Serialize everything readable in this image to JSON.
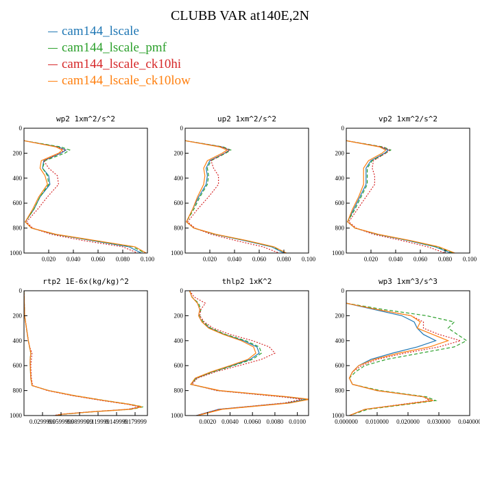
{
  "title": "CLUBB VAR at140E,2N",
  "legend": [
    {
      "label": "cam144_lscale",
      "color": "#1f77b4"
    },
    {
      "label": "cam144_lscale_pmf",
      "color": "#2ca02c"
    },
    {
      "label": "cam144_lscale_ck10hi",
      "color": "#d62728"
    },
    {
      "label": "cam144_lscale_ck10low",
      "color": "#ff7f0e"
    }
  ],
  "chart_data": [
    {
      "type": "line",
      "title": "wp2 1xm^2/s^2",
      "xlim": [
        0,
        0.1
      ],
      "ylim": [
        1000,
        0
      ],
      "xticks": [
        0.02,
        0.04,
        0.06,
        0.08,
        0.1
      ],
      "xtick_labels": [
        "0.020",
        "0.040",
        "0.060",
        "0.080",
        "0.100"
      ],
      "yticks": [
        0,
        200,
        400,
        600,
        800,
        1000
      ],
      "y": [
        100,
        150,
        175,
        200,
        260,
        320,
        380,
        450,
        550,
        650,
        750,
        800,
        850,
        900,
        950,
        1000
      ],
      "series": [
        {
          "values": [
            0.0,
            0.028,
            0.034,
            0.03,
            0.016,
            0.015,
            0.02,
            0.021,
            0.013,
            0.008,
            0.001,
            0.006,
            0.025,
            0.055,
            0.085,
            0.095
          ]
        },
        {
          "values": [
            0.0,
            0.03,
            0.037,
            0.033,
            0.017,
            0.015,
            0.019,
            0.02,
            0.013,
            0.008,
            0.001,
            0.006,
            0.025,
            0.056,
            0.088,
            0.098
          ]
        },
        {
          "values": [
            0.0,
            0.027,
            0.033,
            0.029,
            0.016,
            0.02,
            0.027,
            0.028,
            0.019,
            0.011,
            0.002,
            0.007,
            0.022,
            0.048,
            0.08,
            0.092
          ]
        },
        {
          "values": [
            0.0,
            0.026,
            0.031,
            0.028,
            0.014,
            0.013,
            0.017,
            0.019,
            0.012,
            0.007,
            0.001,
            0.006,
            0.026,
            0.058,
            0.09,
            0.099
          ]
        }
      ]
    },
    {
      "type": "line",
      "title": "up2 1xm^2/s^2",
      "xlim": [
        0,
        0.1
      ],
      "ylim": [
        1000,
        0
      ],
      "xticks": [
        0.02,
        0.04,
        0.06,
        0.08,
        0.1
      ],
      "xtick_labels": [
        "0.020",
        "0.040",
        "0.060",
        "0.080",
        "0.100"
      ],
      "yticks": [
        0,
        200,
        400,
        600,
        800,
        1000
      ],
      "y": [
        100,
        150,
        175,
        200,
        260,
        320,
        380,
        450,
        550,
        650,
        750,
        800,
        850,
        900,
        950,
        1000
      ],
      "series": [
        {
          "values": [
            0.0,
            0.03,
            0.036,
            0.032,
            0.02,
            0.017,
            0.018,
            0.017,
            0.011,
            0.006,
            0.001,
            0.007,
            0.024,
            0.048,
            0.07,
            0.08
          ]
        },
        {
          "values": [
            0.0,
            0.031,
            0.037,
            0.033,
            0.021,
            0.018,
            0.019,
            0.018,
            0.012,
            0.007,
            0.001,
            0.007,
            0.024,
            0.049,
            0.071,
            0.082
          ]
        },
        {
          "values": [
            0.0,
            0.03,
            0.036,
            0.032,
            0.021,
            0.023,
            0.027,
            0.027,
            0.019,
            0.01,
            0.002,
            0.008,
            0.021,
            0.041,
            0.063,
            0.076
          ]
        },
        {
          "values": [
            0.0,
            0.028,
            0.034,
            0.03,
            0.018,
            0.015,
            0.016,
            0.015,
            0.01,
            0.006,
            0.001,
            0.007,
            0.025,
            0.05,
            0.072,
            0.082
          ]
        }
      ]
    },
    {
      "type": "line",
      "title": "vp2 1xm^2/s^2",
      "xlim": [
        0,
        0.1
      ],
      "ylim": [
        1000,
        0
      ],
      "xticks": [
        0.02,
        0.04,
        0.06,
        0.08,
        0.1
      ],
      "xtick_labels": [
        "0.020",
        "0.040",
        "0.060",
        "0.080",
        "0.100"
      ],
      "yticks": [
        0,
        200,
        400,
        600,
        800,
        1000
      ],
      "y": [
        100,
        150,
        175,
        200,
        260,
        320,
        380,
        450,
        550,
        650,
        750,
        800,
        850,
        900,
        950,
        1000
      ],
      "series": [
        {
          "values": [
            0.0,
            0.028,
            0.034,
            0.031,
            0.02,
            0.016,
            0.016,
            0.016,
            0.011,
            0.006,
            0.001,
            0.007,
            0.025,
            0.05,
            0.072,
            0.085
          ]
        },
        {
          "values": [
            0.0,
            0.03,
            0.036,
            0.032,
            0.021,
            0.017,
            0.017,
            0.017,
            0.012,
            0.007,
            0.001,
            0.007,
            0.025,
            0.051,
            0.073,
            0.087
          ]
        },
        {
          "values": [
            0.0,
            0.029,
            0.035,
            0.032,
            0.022,
            0.021,
            0.023,
            0.023,
            0.016,
            0.009,
            0.002,
            0.008,
            0.022,
            0.045,
            0.066,
            0.08
          ]
        },
        {
          "values": [
            0.0,
            0.027,
            0.032,
            0.029,
            0.018,
            0.014,
            0.014,
            0.014,
            0.01,
            0.005,
            0.001,
            0.007,
            0.026,
            0.052,
            0.075,
            0.088
          ]
        }
      ]
    },
    {
      "type": "line",
      "title": "rtp2 1E-6x(kg/kg)^2",
      "xlim": [
        0,
        0.2
      ],
      "ylim": [
        1000,
        0
      ],
      "xticks": [
        0.03,
        0.06,
        0.09,
        0.12,
        0.15,
        0.18
      ],
      "xtick_labels": [
        "0.0299999",
        "0.0599999",
        "0.0899999",
        "0.119999",
        "0.149999",
        "0.179999"
      ],
      "yticks": [
        0,
        200,
        400,
        600,
        800,
        1000
      ],
      "y": [
        0,
        200,
        300,
        400,
        450,
        500,
        550,
        600,
        700,
        760,
        800,
        840,
        880,
        910,
        930,
        950,
        970,
        990,
        1000
      ],
      "series": [
        {
          "values": [
            0.0,
            0.001,
            0.004,
            0.007,
            0.009,
            0.011,
            0.01,
            0.01,
            0.011,
            0.013,
            0.04,
            0.08,
            0.13,
            0.17,
            0.19,
            0.17,
            0.11,
            0.06,
            0.05
          ]
        },
        {
          "values": [
            0.0,
            0.001,
            0.004,
            0.007,
            0.009,
            0.011,
            0.01,
            0.01,
            0.011,
            0.013,
            0.04,
            0.082,
            0.132,
            0.172,
            0.193,
            0.174,
            0.112,
            0.062,
            0.052
          ]
        },
        {
          "values": [
            0.0,
            0.001,
            0.004,
            0.007,
            0.009,
            0.013,
            0.012,
            0.011,
            0.012,
            0.014,
            0.038,
            0.078,
            0.127,
            0.168,
            0.187,
            0.168,
            0.108,
            0.058,
            0.048
          ]
        },
        {
          "values": [
            0.0,
            0.001,
            0.004,
            0.007,
            0.009,
            0.011,
            0.01,
            0.01,
            0.011,
            0.013,
            0.04,
            0.081,
            0.131,
            0.171,
            0.191,
            0.172,
            0.111,
            0.061,
            0.051
          ]
        }
      ]
    },
    {
      "type": "line",
      "title": "thlp2 1xK^2",
      "xlim": [
        0,
        0.011
      ],
      "ylim": [
        1000,
        0
      ],
      "xticks": [
        0.002,
        0.004,
        0.006,
        0.008,
        0.01
      ],
      "xtick_labels": [
        "0.0020",
        "0.0040",
        "0.0060",
        "0.0080",
        "0.0100"
      ],
      "yticks": [
        0,
        200,
        400,
        600,
        800,
        1000
      ],
      "y": [
        0,
        50,
        100,
        150,
        200,
        250,
        300,
        350,
        400,
        450,
        500,
        550,
        600,
        650,
        700,
        750,
        800,
        850,
        870,
        900,
        950,
        1000
      ],
      "series": [
        {
          "values": [
            0.0004,
            0.0006,
            0.0011,
            0.0013,
            0.0012,
            0.0015,
            0.0022,
            0.0035,
            0.0052,
            0.0064,
            0.0066,
            0.0058,
            0.0042,
            0.0024,
            0.001,
            0.0005,
            0.003,
            0.009,
            0.0108,
            0.009,
            0.003,
            0.001
          ]
        },
        {
          "values": [
            0.0004,
            0.0006,
            0.0012,
            0.0014,
            0.0013,
            0.0016,
            0.0023,
            0.0036,
            0.0054,
            0.0066,
            0.0068,
            0.006,
            0.0043,
            0.0025,
            0.001,
            0.0005,
            0.003,
            0.0091,
            0.011,
            0.0092,
            0.0032,
            0.0011
          ]
        },
        {
          "values": [
            0.0004,
            0.0008,
            0.0018,
            0.0014,
            0.0013,
            0.0017,
            0.0025,
            0.004,
            0.006,
            0.0075,
            0.008,
            0.0068,
            0.0048,
            0.0027,
            0.0011,
            0.0006,
            0.0028,
            0.0086,
            0.0104,
            0.0088,
            0.003,
            0.001
          ]
        },
        {
          "values": [
            0.0004,
            0.0006,
            0.0011,
            0.0013,
            0.0012,
            0.0015,
            0.0021,
            0.0034,
            0.005,
            0.0061,
            0.0063,
            0.0056,
            0.004,
            0.0023,
            0.0009,
            0.0005,
            0.0031,
            0.0092,
            0.0111,
            0.0093,
            0.0033,
            0.0011
          ]
        }
      ]
    },
    {
      "type": "line",
      "title": "wp3 1xm^3/s^3",
      "xlim": [
        0,
        0.04
      ],
      "ylim": [
        1000,
        0
      ],
      "xticks": [
        0,
        0.01,
        0.02,
        0.03,
        0.04
      ],
      "xtick_labels": [
        "0.000000",
        "0.010000",
        "0.020000",
        "0.030000",
        "0.040000"
      ],
      "yticks": [
        0,
        200,
        400,
        600,
        800,
        1000
      ],
      "y": [
        100,
        150,
        200,
        250,
        300,
        350,
        400,
        450,
        500,
        550,
        600,
        650,
        700,
        750,
        800,
        850,
        880,
        900,
        950,
        1000
      ],
      "series": [
        {
          "values": [
            0.0,
            0.009,
            0.018,
            0.022,
            0.023,
            0.025,
            0.029,
            0.023,
            0.015,
            0.008,
            0.004,
            0.002,
            0.001,
            0.002,
            0.01,
            0.025,
            0.028,
            0.022,
            0.006,
            0.001
          ]
        },
        {
          "values": [
            0.0,
            0.012,
            0.026,
            0.035,
            0.033,
            0.036,
            0.039,
            0.035,
            0.024,
            0.013,
            0.006,
            0.003,
            0.001,
            0.002,
            0.011,
            0.026,
            0.029,
            0.023,
            0.007,
            0.001
          ]
        },
        {
          "values": [
            0.0,
            0.01,
            0.021,
            0.025,
            0.025,
            0.03,
            0.037,
            0.03,
            0.019,
            0.01,
            0.005,
            0.002,
            0.001,
            0.002,
            0.01,
            0.025,
            0.027,
            0.021,
            0.006,
            0.001
          ]
        },
        {
          "values": [
            0.0,
            0.01,
            0.021,
            0.024,
            0.023,
            0.028,
            0.033,
            0.027,
            0.017,
            0.009,
            0.004,
            0.002,
            0.001,
            0.002,
            0.01,
            0.025,
            0.028,
            0.022,
            0.006,
            0.001
          ]
        }
      ]
    }
  ]
}
